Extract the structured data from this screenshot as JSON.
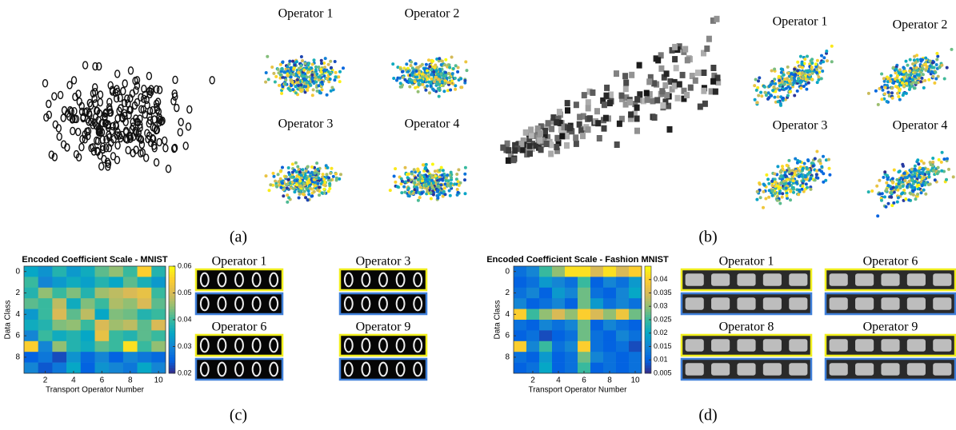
{
  "panels": {
    "a": "(a)",
    "b": "(b)",
    "c": "(c)",
    "d": "(d)"
  },
  "embedding_titles": {
    "a": [
      "Operator 1",
      "Operator 2",
      "Operator 3",
      "Operator 4"
    ],
    "b": [
      "Operator 1",
      "Operator 2",
      "Operator 3",
      "Operator 4"
    ]
  },
  "strip_titles": {
    "c": [
      "Operator 1",
      "Operator 3",
      "Operator 6",
      "Operator 9"
    ],
    "d": [
      "Operator 1",
      "Operator 6",
      "Operator 8",
      "Operator 9"
    ]
  },
  "chart_data": [
    {
      "type": "heatmap",
      "title": "Encoded Coefficient Scale - MNIST",
      "xlabel": "Transport Operator Number",
      "ylabel": "Data Class",
      "xlim": [
        0.5,
        10.5
      ],
      "ylim": [
        9.5,
        -0.5
      ],
      "xticks": [
        2,
        4,
        6,
        8,
        10
      ],
      "yticks": [
        0,
        2,
        4,
        6,
        8
      ],
      "clim": [
        0.02,
        0.06
      ],
      "cticks": [
        0.02,
        0.03,
        0.04,
        0.05,
        0.06
      ],
      "colormap": "parula",
      "values": [
        [
          0.035,
          0.032,
          0.038,
          0.033,
          0.036,
          0.042,
          0.045,
          0.04,
          0.055,
          0.038
        ],
        [
          0.04,
          0.03,
          0.033,
          0.036,
          0.034,
          0.038,
          0.035,
          0.042,
          0.037,
          0.033
        ],
        [
          0.038,
          0.045,
          0.04,
          0.044,
          0.038,
          0.046,
          0.048,
          0.05,
          0.052,
          0.04
        ],
        [
          0.042,
          0.04,
          0.048,
          0.036,
          0.044,
          0.04,
          0.047,
          0.045,
          0.05,
          0.042
        ],
        [
          0.033,
          0.04,
          0.05,
          0.042,
          0.048,
          0.035,
          0.044,
          0.043,
          0.038,
          0.04
        ],
        [
          0.036,
          0.038,
          0.044,
          0.045,
          0.04,
          0.05,
          0.046,
          0.048,
          0.042,
          0.05
        ],
        [
          0.03,
          0.04,
          0.036,
          0.038,
          0.035,
          0.052,
          0.04,
          0.038,
          0.042,
          0.04
        ],
        [
          0.055,
          0.03,
          0.045,
          0.038,
          0.036,
          0.042,
          0.04,
          0.057,
          0.04,
          0.045
        ],
        [
          0.025,
          0.028,
          0.023,
          0.032,
          0.026,
          0.03,
          0.025,
          0.03,
          0.028,
          0.026
        ],
        [
          0.03,
          0.024,
          0.028,
          0.035,
          0.025,
          0.032,
          0.03,
          0.028,
          0.035,
          0.03
        ]
      ]
    },
    {
      "type": "heatmap",
      "title": "Encoded Coefficient Scale - Fashion MNIST",
      "xlabel": "Transport Operator Number",
      "ylabel": "Data Class",
      "xlim": [
        0.5,
        10.5
      ],
      "ylim": [
        9.5,
        -0.5
      ],
      "xticks": [
        2,
        4,
        6,
        8,
        10
      ],
      "yticks": [
        0,
        2,
        4,
        6,
        8
      ],
      "clim": [
        0.005,
        0.045
      ],
      "cticks": [
        0.005,
        0.01,
        0.015,
        0.02,
        0.025,
        0.03,
        0.035,
        0.04
      ],
      "colormap": "parula",
      "values": [
        [
          0.012,
          0.015,
          0.025,
          0.03,
          0.042,
          0.042,
          0.035,
          0.042,
          0.035,
          0.04
        ],
        [
          0.01,
          0.012,
          0.018,
          0.015,
          0.012,
          0.025,
          0.01,
          0.015,
          0.012,
          0.018
        ],
        [
          0.012,
          0.015,
          0.01,
          0.018,
          0.015,
          0.028,
          0.012,
          0.01,
          0.015,
          0.02
        ],
        [
          0.015,
          0.01,
          0.012,
          0.015,
          0.01,
          0.028,
          0.018,
          0.012,
          0.015,
          0.012
        ],
        [
          0.04,
          0.025,
          0.03,
          0.035,
          0.03,
          0.04,
          0.035,
          0.03,
          0.038,
          0.028
        ],
        [
          0.012,
          0.01,
          0.015,
          0.012,
          0.015,
          0.028,
          0.01,
          0.015,
          0.012,
          0.01
        ],
        [
          0.01,
          0.012,
          0.008,
          0.01,
          0.012,
          0.028,
          0.012,
          0.01,
          0.015,
          0.012
        ],
        [
          0.04,
          0.015,
          0.025,
          0.012,
          0.015,
          0.04,
          0.012,
          0.01,
          0.012,
          0.008
        ],
        [
          0.012,
          0.01,
          0.018,
          0.01,
          0.012,
          0.028,
          0.015,
          0.012,
          0.01,
          0.012
        ],
        [
          0.01,
          0.012,
          0.02,
          0.01,
          0.012,
          0.025,
          0.01,
          0.012,
          0.01,
          0.012
        ]
      ]
    }
  ]
}
